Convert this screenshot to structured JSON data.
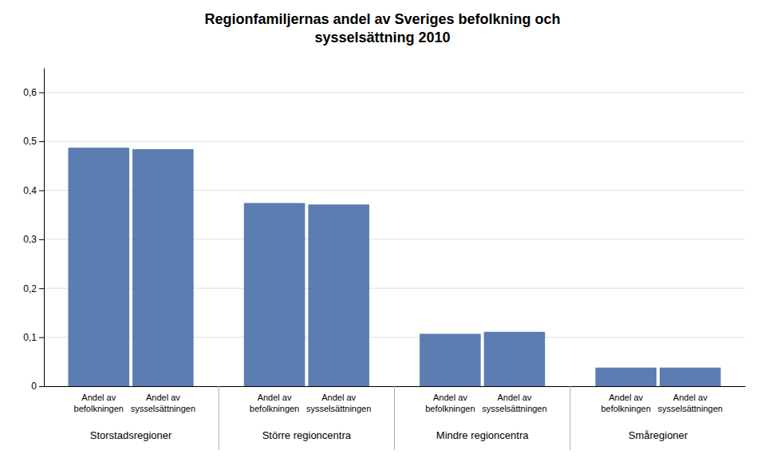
{
  "chart_data": {
    "type": "bar",
    "title": "Regionfamiljernas andel av Sveriges befolkning och\nsysselsättning 2010",
    "categories": [
      "Andel av\nbefolkningen",
      "Andel av\nsysselsättningen",
      "Andel av\nbefolkningen",
      "Andel av\nsysselsättningen",
      "Andel av\nbefolkningen",
      "Andel av\nsysselsättningen",
      "Andel av\nbefolkningen",
      "Andel av\nsysselsättningen"
    ],
    "groups": [
      "Storstadsregioner",
      "Större regioncentra",
      "Mindre regioncentra",
      "Småregioner"
    ],
    "values": [
      0.487,
      0.484,
      0.374,
      0.371,
      0.107,
      0.111,
      0.038,
      0.038
    ],
    "color": "#5B7DB1",
    "ylim": [
      0,
      0.65
    ],
    "yticks": [
      0,
      {
        "value": 0.1,
        "label": "0,1"
      },
      {
        "value": 0.2,
        "label": "0,2"
      },
      {
        "value": 0.3,
        "label": "0,3"
      },
      {
        "value": 0.4,
        "label": "0,4"
      },
      {
        "value": 0.5,
        "label": "0,5"
      },
      {
        "value": 0.6,
        "label": "0,6"
      }
    ],
    "grid": true
  }
}
